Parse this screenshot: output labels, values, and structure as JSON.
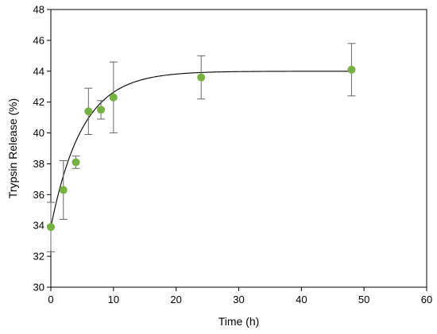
{
  "chart_data": {
    "type": "scatter",
    "xlabel": "Time (h)",
    "ylabel": "Trypsin Release (%)",
    "xlim": [
      0,
      60
    ],
    "ylim": [
      30,
      48
    ],
    "x_ticks": [
      0,
      10,
      20,
      30,
      40,
      50,
      60
    ],
    "y_ticks": [
      30,
      32,
      34,
      36,
      38,
      40,
      42,
      44,
      46,
      48
    ],
    "grid": false,
    "legend": "none",
    "marker_color": "#77b043",
    "series": [
      {
        "x": [
          0,
          2,
          4,
          6,
          8,
          10,
          24,
          48
        ],
        "y": [
          33.9,
          36.3,
          38.1,
          41.4,
          41.5,
          42.3,
          43.6,
          44.1
        ],
        "error": [
          1.6,
          1.9,
          0.4,
          1.5,
          0.6,
          2.3,
          1.4,
          1.7
        ]
      }
    ],
    "fit_curve": {
      "form": "y = a - b*exp(-k*x)",
      "a": 44.0,
      "b": 10.1,
      "k": 0.2
    }
  }
}
